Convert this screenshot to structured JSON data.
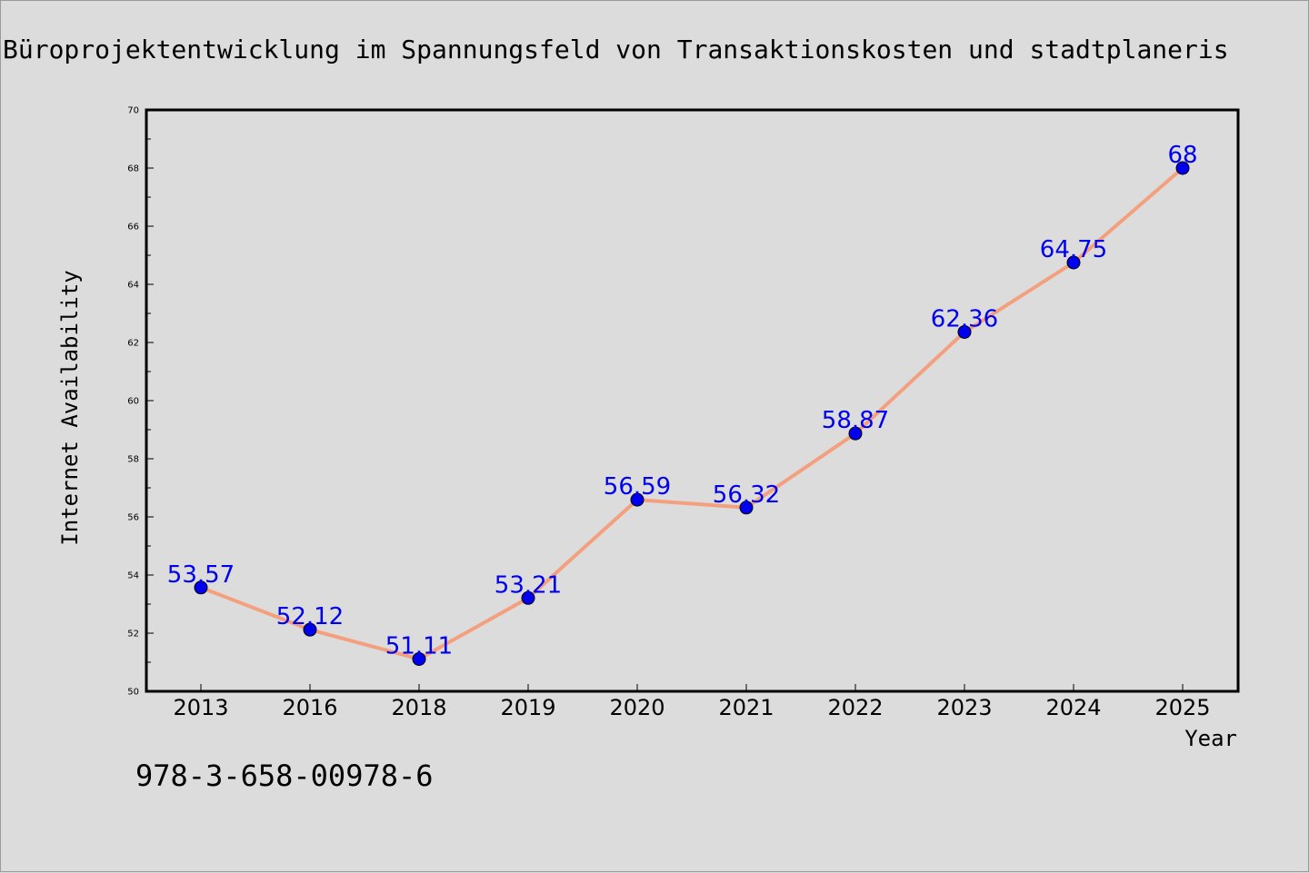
{
  "chart_data": {
    "type": "line",
    "title": "Büroprojektentwicklung im Spannungsfeld von Transaktionskosten und stadtplaneris",
    "xlabel": "Year",
    "ylabel": "Internet Availability",
    "categories": [
      "2013",
      "2016",
      "2018",
      "2019",
      "2020",
      "2021",
      "2022",
      "2023",
      "2024",
      "2025"
    ],
    "series": [
      {
        "values": [
          53.57,
          52.12,
          51.11,
          53.21,
          56.59,
          56.32,
          58.87,
          62.36,
          64.75,
          68
        ],
        "labels": [
          "53.57",
          "52.12",
          "51.11",
          "53.21",
          "56.59",
          "56.32",
          "58.87",
          "62.36",
          "64.75",
          "68"
        ]
      }
    ],
    "ylim": [
      50,
      70
    ],
    "yticks": [
      "50",
      "52",
      "54",
      "56",
      "58",
      "60",
      "62",
      "64",
      "66",
      "68",
      "70"
    ],
    "grid": false,
    "line_color": "#f4a07e",
    "marker_color": "#0000ee",
    "label_color": "#0000ee"
  },
  "footer": {
    "isbn": "978-3-658-00978-6"
  }
}
